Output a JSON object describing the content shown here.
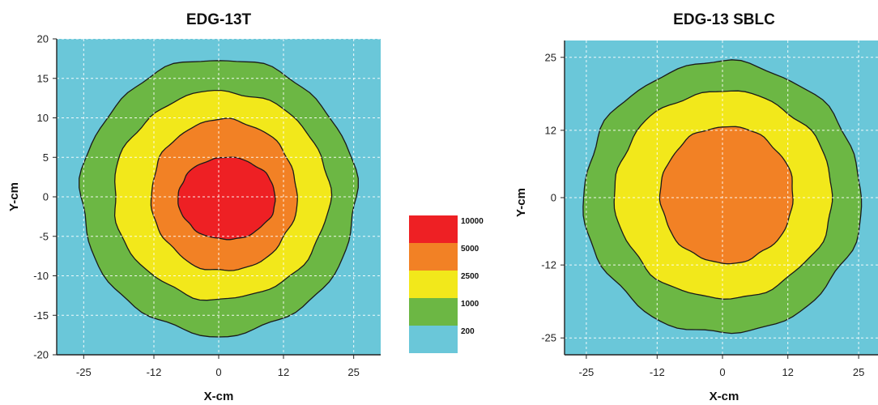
{
  "chart_data": [
    {
      "type": "contour",
      "title": "EDG-13T",
      "xlabel": "X-cm",
      "ylabel": "Y-cm",
      "xlim": [
        -30,
        30
      ],
      "ylim": [
        20,
        -20
      ],
      "x_ticks": [
        -25,
        -12,
        0,
        12,
        25
      ],
      "y_ticks": [
        -20,
        -15,
        -10,
        -5,
        0,
        5,
        10,
        15,
        20
      ],
      "x_tick_labels": [
        "-25",
        "-12",
        "0",
        "12",
        "25"
      ],
      "y_tick_labels": [
        "-20",
        "-15",
        "-10",
        "-5",
        "0",
        "5",
        "10",
        "15",
        "20"
      ],
      "grid": true,
      "background_color": "#6ac7d9",
      "contours": [
        {
          "color": "#6cb744",
          "cx": 0,
          "cy": 0,
          "rx": 25.5,
          "ry": 17.5
        },
        {
          "color": "#f2e81b",
          "cx": 0.5,
          "cy": 0.2,
          "rx": 20,
          "ry": 13.2
        },
        {
          "color": "#f28125",
          "cx": 1,
          "cy": 0.2,
          "rx": 13.5,
          "ry": 9.6
        },
        {
          "color": "#ee2024",
          "cx": 1.5,
          "cy": -0.2,
          "rx": 9,
          "ry": 5.2
        }
      ]
    },
    {
      "type": "contour",
      "title": "EDG-13 SBLC",
      "xlabel": "X-cm",
      "ylabel": "Y-cm",
      "xlim": [
        -29,
        29
      ],
      "ylim": [
        28,
        -28
      ],
      "x_ticks": [
        -25,
        -12,
        0,
        12,
        25
      ],
      "y_ticks": [
        25,
        12,
        0,
        -12,
        -25
      ],
      "x_tick_labels": [
        "-25",
        "-12",
        "0",
        "12",
        "25"
      ],
      "y_tick_labels": [
        "25",
        "12",
        "0",
        "-12",
        "-25"
      ],
      "grid": true,
      "background_color": "#6ac7d9",
      "contours": [
        {
          "color": "#6cb744",
          "cx": 0,
          "cy": 0,
          "rx": 25.5,
          "ry": 24.2
        },
        {
          "color": "#f2e81b",
          "cx": 0.2,
          "cy": 0.5,
          "rx": 20,
          "ry": 18.5
        },
        {
          "color": "#f28125",
          "cx": 0.8,
          "cy": 0.5,
          "rx": 12.2,
          "ry": 12.2
        }
      ]
    }
  ],
  "legend": {
    "levels": [
      {
        "label": "10000",
        "color": "#ee2024"
      },
      {
        "label": "5000",
        "color": "#f28125"
      },
      {
        "label": "2500",
        "color": "#f2e81b"
      },
      {
        "label": "1000",
        "color": "#6cb744"
      },
      {
        "label": "200",
        "color": "#6ac7d9"
      }
    ]
  }
}
